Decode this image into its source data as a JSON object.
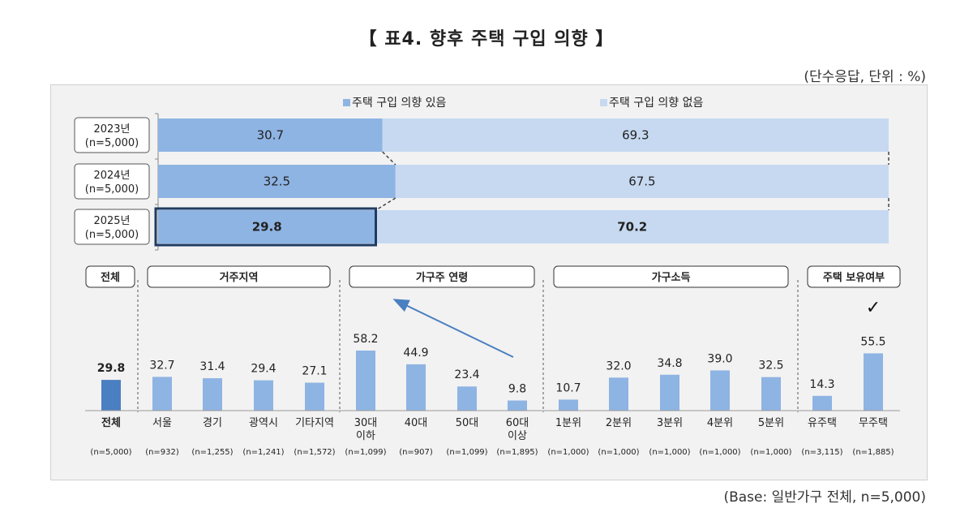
{
  "title": "【 표4. 향후 주택 구입 의향 】",
  "unit_note": "(단수응답, 단위 : %)",
  "base_note": "(Base: 일반가구 전체, n=5,000)",
  "colors": {
    "yes": "#8eb4e3",
    "no": "#c6d9f1",
    "total": "#4a7fc1",
    "highlight": "#1f3b63"
  },
  "chart_data": [
    {
      "type": "bar",
      "orientation": "horizontal-stacked-100",
      "legend_position": "top-center",
      "series": [
        {
          "name": "주택 구입 의향 있음",
          "values": [
            30.7,
            32.5,
            29.8
          ]
        },
        {
          "name": "주택 구입 의향 없음",
          "values": [
            69.3,
            67.5,
            70.2
          ]
        }
      ],
      "rows": [
        {
          "label": "2023년",
          "n": "(n=5,000)"
        },
        {
          "label": "2024년",
          "n": "(n=5,000)"
        },
        {
          "label": "2025년",
          "n": "(n=5,000)"
        }
      ],
      "highlight_row": 2,
      "xlim": [
        0,
        100
      ]
    },
    {
      "type": "bar",
      "orientation": "vertical",
      "series_name": "주택 구입 의향 있음",
      "ylim": [
        0,
        100
      ],
      "groups": [
        {
          "name": "전체",
          "start": 0,
          "end": 0
        },
        {
          "name": "거주지역",
          "start": 1,
          "end": 4
        },
        {
          "name": "가구주 연령",
          "start": 5,
          "end": 8
        },
        {
          "name": "가구소득",
          "start": 9,
          "end": 13
        },
        {
          "name": "주택 보유여부",
          "start": 14,
          "end": 15
        }
      ],
      "categories": [
        {
          "label": "전체",
          "sub": "",
          "value": 29.8,
          "n": "(n=5,000)",
          "bold": true
        },
        {
          "label": "서울",
          "sub": "",
          "value": 32.7,
          "n": "(n=932)"
        },
        {
          "label": "경기",
          "sub": "",
          "value": 31.4,
          "n": "(n=1,255)"
        },
        {
          "label": "광역시",
          "sub": "",
          "value": 29.4,
          "n": "(n=1,241)"
        },
        {
          "label": "기타지역",
          "sub": "",
          "value": 27.1,
          "n": "(n=1,572)"
        },
        {
          "label": "30대",
          "sub": "이하",
          "value": 58.2,
          "n": "(n=1,099)"
        },
        {
          "label": "40대",
          "sub": "",
          "value": 44.9,
          "n": "(n=907)"
        },
        {
          "label": "50대",
          "sub": "",
          "value": 23.4,
          "n": "(n=1,099)"
        },
        {
          "label": "60대",
          "sub": "이상",
          "value": 9.8,
          "n": "(n=1,895)"
        },
        {
          "label": "1분위",
          "sub": "",
          "value": 10.7,
          "n": "(n=1,000)"
        },
        {
          "label": "2분위",
          "sub": "",
          "value": 32.0,
          "n": "(n=1,000)"
        },
        {
          "label": "3분위",
          "sub": "",
          "value": 34.8,
          "n": "(n=1,000)"
        },
        {
          "label": "4분위",
          "sub": "",
          "value": 39.0,
          "n": "(n=1,000)"
        },
        {
          "label": "5분위",
          "sub": "",
          "value": 32.5,
          "n": "(n=1,000)"
        },
        {
          "label": "유주택",
          "sub": "",
          "value": 14.3,
          "n": "(n=3,115)"
        },
        {
          "label": "무주택",
          "sub": "",
          "value": 55.5,
          "n": "(n=1,885)"
        }
      ],
      "annotations": {
        "arrow": "60대 이상 → 30대 이하",
        "checkmark": "✓",
        "checkmark_category": 15
      }
    }
  ]
}
